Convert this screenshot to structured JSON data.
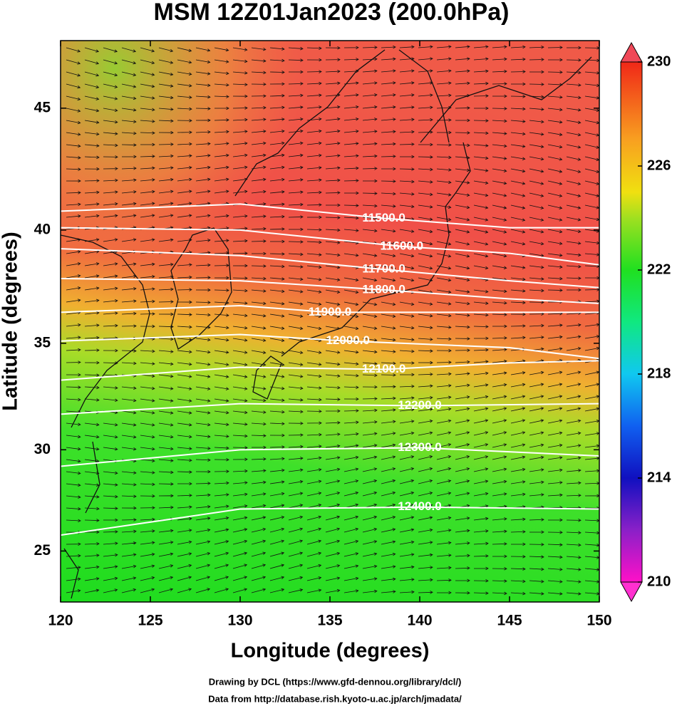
{
  "chart_data": {
    "type": "contour_map",
    "title": "MSM 12Z01Jan2023 (200.0hPa)",
    "x_label": "Longitude (degrees)",
    "y_label": "Latitude  (degrees)",
    "projection": "mercator",
    "xlim": [
      120,
      150
    ],
    "ylim": [
      22.4,
      47.6
    ],
    "xticks": [
      120,
      125,
      130,
      135,
      140,
      145,
      150
    ],
    "yticks": [
      25,
      30,
      35,
      40,
      45
    ],
    "colorbar": {
      "clim": [
        210,
        230
      ],
      "ticks": [
        210,
        214,
        218,
        222,
        226,
        230
      ]
    },
    "contours": [
      {
        "level": {
          "value": 11500,
          "label": "11500.0"
        },
        "lon": [
          120,
          130,
          138,
          145,
          150
        ],
        "lat": [
          40.8,
          41.1,
          40.5,
          40.1,
          40.1
        ]
      },
      {
        "level": {
          "value": 11600,
          "label": "11600.0"
        },
        "lon": [
          120,
          130,
          139,
          145,
          150
        ],
        "lat": [
          40.1,
          40.0,
          39.3,
          39.0,
          38.5
        ]
      },
      {
        "level": {
          "value": 11700,
          "label": "11700.0"
        },
        "lon": [
          120,
          130,
          138,
          145,
          150
        ],
        "lat": [
          39.2,
          38.9,
          38.3,
          37.8,
          37.5
        ]
      },
      {
        "level": {
          "value": 11800,
          "label": "11800.0"
        },
        "lon": [
          120,
          130,
          138,
          145,
          150
        ],
        "lat": [
          37.9,
          37.8,
          37.4,
          37.0,
          36.8
        ]
      },
      {
        "level": {
          "value": 11900,
          "label": "11900.0"
        },
        "lon": [
          120,
          130,
          135,
          145,
          150
        ],
        "lat": [
          36.4,
          36.7,
          36.4,
          36.4,
          36.4
        ]
      },
      {
        "level": {
          "value": 12000,
          "label": "12000.0"
        },
        "lon": [
          120,
          130,
          136,
          145,
          150
        ],
        "lat": [
          35.1,
          35.4,
          35.1,
          34.8,
          34.3
        ]
      },
      {
        "level": {
          "value": 12100,
          "label": "12100.0"
        },
        "lon": [
          120,
          130,
          138,
          145,
          150
        ],
        "lat": [
          33.3,
          33.9,
          33.8,
          34.1,
          34.2
        ]
      },
      {
        "level": {
          "value": 12200,
          "label": "12200.0"
        },
        "lon": [
          120,
          130,
          140,
          150
        ],
        "lat": [
          31.7,
          32.2,
          32.1,
          32.2
        ]
      },
      {
        "level": {
          "value": 12300,
          "label": "12300.0"
        },
        "lon": [
          120,
          130,
          140,
          150
        ],
        "lat": [
          29.2,
          30.0,
          30.1,
          29.7
        ]
      },
      {
        "level": {
          "value": 12400,
          "label": "12400.0"
        },
        "lon": [
          120,
          130,
          140,
          150
        ],
        "lat": [
          25.8,
          27.1,
          27.2,
          27.1
        ]
      }
    ],
    "credits": [
      "Drawing by DCL (https://www.gfd-dennou.org/library/dcl/)",
      "Data from http://database.rish.kyoto-u.ac.jp/arch/jmadata/"
    ]
  }
}
